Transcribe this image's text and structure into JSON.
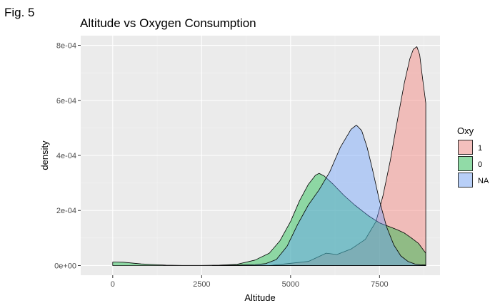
{
  "figure_label": "Fig. 5",
  "chart_data": {
    "type": "area",
    "title": "Altitude vs Oxygen Consumption",
    "xlabel": "Altitude",
    "ylabel": "density",
    "xlim": [
      -900,
      9200
    ],
    "ylim": [
      -3.5e-05,
      0.000835
    ],
    "x_ticks": [
      0,
      2500,
      5000,
      7500
    ],
    "x_tick_labels": [
      "0",
      "2500",
      "5000",
      "7500"
    ],
    "y_ticks": [
      0,
      0.0002,
      0.0004,
      0.0006,
      0.0008
    ],
    "y_tick_labels": [
      "0e+00",
      "2e-04",
      "4e-04",
      "6e-04",
      "8e-04"
    ],
    "grid": true,
    "legend_title": "Oxy",
    "legend_position": "right",
    "series": [
      {
        "name": "1",
        "color": "#F8766D",
        "x": [
          4400,
          5500,
          6000,
          6300,
          6700,
          7100,
          7400,
          7600,
          7800,
          8000,
          8200,
          8350,
          8450,
          8550,
          8630,
          8700,
          8800
        ],
        "y": [
          0,
          1.5e-05,
          4.5e-05,
          4e-05,
          6e-05,
          9.5e-05,
          0.00016,
          0.000255,
          0.00038,
          0.000525,
          0.000665,
          0.00075,
          0.000785,
          0.000795,
          0.000765,
          0.00069,
          0.00059
        ]
      },
      {
        "name": "0",
        "color": "#00BA38",
        "x": [
          0,
          300,
          800,
          1500,
          2000,
          2500,
          3000,
          3500,
          4000,
          4400,
          4700,
          5000,
          5250,
          5500,
          5700,
          5800,
          5950,
          6200,
          6500,
          6800,
          7000,
          7200,
          7500,
          7800,
          8000,
          8200,
          8400,
          8600,
          8800
        ],
        "y": [
          1.3e-05,
          1.2e-05,
          6e-06,
          1.5e-06,
          5e-07,
          5e-07,
          1.5e-06,
          5e-06,
          2e-05,
          4.5e-05,
          9e-05,
          0.00016,
          0.000235,
          0.000295,
          0.000328,
          0.000335,
          0.000325,
          0.000295,
          0.000255,
          0.00022,
          0.0002,
          0.00018,
          0.000155,
          0.00014,
          0.00013,
          0.000118,
          0.0001,
          8e-05,
          4.5e-05
        ]
      },
      {
        "name": "NA",
        "color": "#619CFF",
        "x": [
          2800,
          3500,
          4000,
          4300,
          4600,
          4900,
          5200,
          5500,
          5800,
          6100,
          6400,
          6700,
          6850,
          7000,
          7150,
          7300,
          7500,
          7700,
          7900,
          8100,
          8300,
          8500,
          8650,
          8800
        ],
        "y": [
          0,
          1.5e-06,
          3.5e-06,
          7e-06,
          2.2e-05,
          7e-05,
          0.00015,
          0.00022,
          0.000275,
          0.00034,
          0.00043,
          0.000495,
          0.00051,
          0.00049,
          0.00043,
          0.00035,
          0.000235,
          0.00014,
          7.5e-05,
          3.5e-05,
          1.5e-05,
          5.5e-06,
          3e-06,
          2e-06
        ]
      }
    ]
  }
}
